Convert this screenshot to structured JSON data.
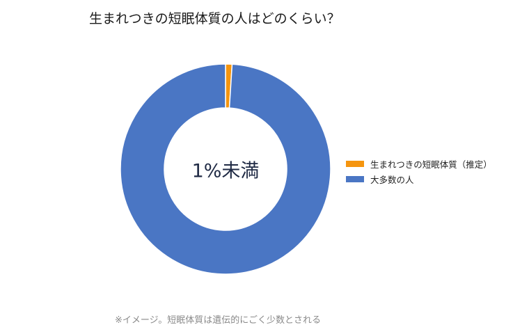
{
  "chart_data": {
    "type": "pie",
    "style": "donut",
    "title": "生まれつきの短眠体質の人はどのくらい？",
    "center_label": "1%未満",
    "categories": [
      "生まれつきの短眠体質（推定）",
      "大多数の人"
    ],
    "values": [
      1,
      99
    ],
    "colors": [
      "#f5950f",
      "#4a76c4"
    ],
    "legend_position": "right",
    "footnote": "※イメージ。短眠体質は遺伝的にごく少数とされる"
  }
}
